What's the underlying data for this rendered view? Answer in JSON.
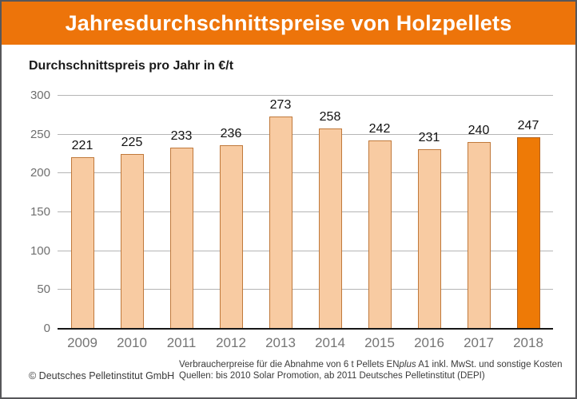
{
  "header": {
    "title": "Jahresdurchschnittspreise von Holzpellets"
  },
  "subtitle": "Durchschnittspreis pro Jahr in €/t",
  "chart_data": {
    "type": "bar",
    "categories": [
      "2009",
      "2010",
      "2011",
      "2012",
      "2013",
      "2014",
      "2015",
      "2016",
      "2017",
      "2018"
    ],
    "values": [
      221,
      225,
      233,
      236,
      273,
      258,
      242,
      231,
      240,
      247
    ],
    "title": "Jahresdurchschnittspreise von Holzpellets",
    "xlabel": "",
    "ylabel": "Durchschnittspreis pro Jahr in €/t",
    "ylim": [
      0,
      300
    ],
    "yticks": [
      0,
      50,
      100,
      150,
      200,
      250,
      300
    ],
    "grid": true,
    "legend": false,
    "highlight_category": "2018",
    "bar_color": "#f8cba2",
    "bar_border_color": "#c0793b",
    "highlight_color": "#ee7a06",
    "highlight_border_color": "#b4611c"
  },
  "footnote": {
    "line1_pre": "Verbraucherpreise für die Abnahme von 6 t Pellets EN",
    "line1_italic": "plus",
    "line1_post": " A1 inkl. MwSt. und sonstige Kosten",
    "line2": "Quellen: bis 2010 Solar Promotion, ab 2011 Deutsches Pelletinstitut (DEPI)"
  },
  "copyright": "© Deutsches Pelletinstitut GmbH",
  "colors": {
    "banner": "#ed740a",
    "grid": "#b5b5b5",
    "axis": "#161616",
    "tick_label": "#6f6f6f"
  }
}
